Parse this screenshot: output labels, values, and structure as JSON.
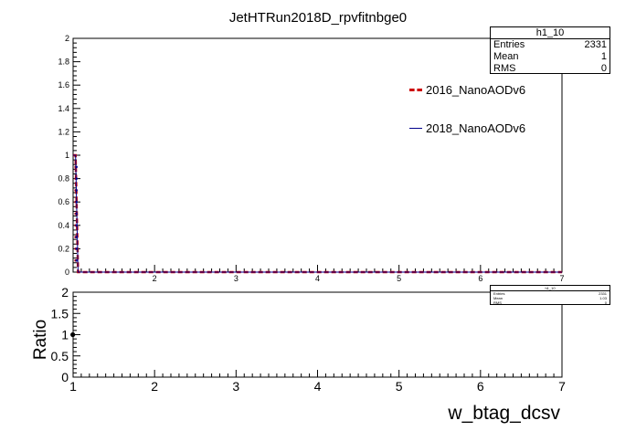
{
  "chart_data": [
    {
      "type": "line",
      "title": "JetHTRun2018D_rpvfitnbge0",
      "xlabel": "",
      "ylabel": "",
      "xlim": [
        1,
        7
      ],
      "ylim": [
        0,
        2
      ],
      "x_ticks": [
        "2",
        "3",
        "4",
        "5",
        "6",
        "7"
      ],
      "y_ticks": [
        "0",
        "0.2",
        "0.4",
        "0.6",
        "0.8",
        "1",
        "1.2",
        "1.4",
        "1.6",
        "1.8",
        "2"
      ],
      "series": [
        {
          "name": "2016_NanoAODv6",
          "color": "#cc0000",
          "style": "dashed",
          "x": [
            1.0,
            1.03,
            1.06,
            1.1,
            1.2,
            2,
            3,
            4,
            5,
            6,
            7
          ],
          "y": [
            1.0,
            1.0,
            0,
            0,
            0,
            0,
            0,
            0,
            0,
            0,
            0
          ]
        },
        {
          "name": "2018_NanoAODv6",
          "color": "#00008b",
          "style": "solid",
          "x": [
            1.0,
            1.03,
            1.06,
            1.1,
            1.2,
            2,
            3,
            4,
            5,
            6,
            7
          ],
          "y": [
            1.0,
            1.0,
            0,
            0,
            0,
            0,
            0,
            0,
            0,
            0,
            0
          ]
        }
      ],
      "stats": {
        "title": "h1_10",
        "rows": [
          {
            "label": "Entries",
            "value": "2331"
          },
          {
            "label": "Mean",
            "value": "1"
          },
          {
            "label": "RMS",
            "value": "0"
          }
        ]
      }
    },
    {
      "type": "scatter",
      "title": "",
      "xlabel": "w_btag_dcsv",
      "ylabel": "Ratio",
      "xlim": [
        1,
        7
      ],
      "ylim": [
        0,
        2
      ],
      "x_ticks": [
        "1",
        "2",
        "3",
        "4",
        "5",
        "6",
        "7"
      ],
      "y_ticks": [
        "0",
        "0.5",
        "1",
        "1.5",
        "2"
      ],
      "points": [
        {
          "x": 1.03,
          "y": 1.0
        }
      ],
      "stats": {
        "title": "h1_10",
        "rows": [
          {
            "label": "Entries",
            "value": "2331"
          },
          {
            "label": "Mean",
            "value": "1.03"
          },
          {
            "label": "RMS",
            "value": "0"
          }
        ]
      }
    }
  ]
}
